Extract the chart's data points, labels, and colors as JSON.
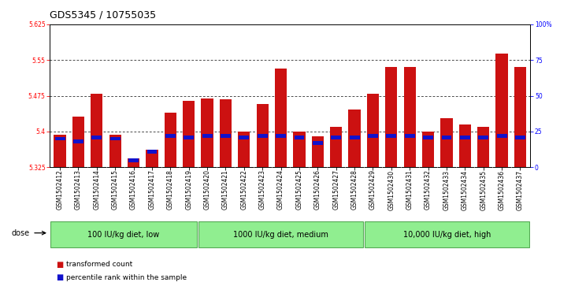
{
  "title": "GDS5345 / 10755035",
  "samples": [
    "GSM1502412",
    "GSM1502413",
    "GSM1502414",
    "GSM1502415",
    "GSM1502416",
    "GSM1502417",
    "GSM1502418",
    "GSM1502419",
    "GSM1502420",
    "GSM1502421",
    "GSM1502422",
    "GSM1502423",
    "GSM1502424",
    "GSM1502425",
    "GSM1502426",
    "GSM1502427",
    "GSM1502428",
    "GSM1502429",
    "GSM1502430",
    "GSM1502431",
    "GSM1502432",
    "GSM1502433",
    "GSM1502434",
    "GSM1502435",
    "GSM1502436",
    "GSM1502437"
  ],
  "transformed_counts": [
    5.393,
    5.432,
    5.48,
    5.393,
    5.343,
    5.362,
    5.44,
    5.465,
    5.47,
    5.468,
    5.4,
    5.457,
    5.533,
    5.4,
    5.39,
    5.41,
    5.447,
    5.48,
    5.535,
    5.535,
    5.4,
    5.428,
    5.415,
    5.41,
    5.563,
    5.535
  ],
  "percentile_ranks_pct": [
    20,
    18,
    21,
    20,
    8,
    19,
    22,
    21,
    22,
    22,
    21,
    22,
    22,
    21,
    17,
    21,
    21,
    22,
    22,
    22,
    21,
    21,
    21,
    21,
    22,
    21
  ],
  "groups": [
    {
      "label": "100 IU/kg diet, low",
      "start": 0,
      "end": 8
    },
    {
      "label": "1000 IU/kg diet, medium",
      "start": 8,
      "end": 17
    },
    {
      "label": "10,000 IU/kg diet, high",
      "start": 17,
      "end": 26
    }
  ],
  "group_color": "#90EE90",
  "group_border_color": "#55aa55",
  "y_min": 5.325,
  "y_max": 5.625,
  "y_ticks": [
    5.325,
    5.4,
    5.475,
    5.55,
    5.625
  ],
  "y_tick_labels": [
    "5.325",
    "5.4",
    "5.475",
    "5.55",
    "5.625"
  ],
  "grid_yticks": [
    5.4,
    5.475,
    5.55
  ],
  "right_y_ticks": [
    0,
    25,
    50,
    75,
    100
  ],
  "right_y_labels": [
    "0",
    "25",
    "50",
    "75",
    "100%"
  ],
  "bar_red": "#cc1111",
  "bar_blue": "#1111cc",
  "bar_width": 0.65,
  "xtick_bg": "#d8d8d8",
  "plot_bg": "#ffffff",
  "dose_label": "dose",
  "legend": [
    "transformed count",
    "percentile rank within the sample"
  ],
  "title_fontsize": 9,
  "tick_fontsize": 5.5,
  "label_fontsize": 7
}
